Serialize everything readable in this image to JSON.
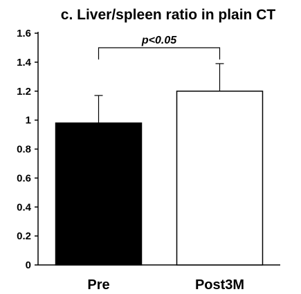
{
  "chart_data": {
    "type": "bar",
    "title": "c. Liver/spleen ratio in plain CT",
    "xlabel": "",
    "ylabel": "",
    "categories": [
      "Pre",
      "Post3M"
    ],
    "values": [
      0.98,
      1.2
    ],
    "error_bars": [
      0.19,
      0.19
    ],
    "bar_colors": [
      "#000000",
      "#ffffff"
    ],
    "ylim": [
      0,
      1.6
    ],
    "yticks": [
      "0",
      "0.2",
      "0.4",
      "0.6",
      "0.8",
      "1",
      "1.2",
      "1.4",
      "1.6"
    ],
    "grid": false,
    "legend": "none",
    "annotation": "p<0.05"
  }
}
